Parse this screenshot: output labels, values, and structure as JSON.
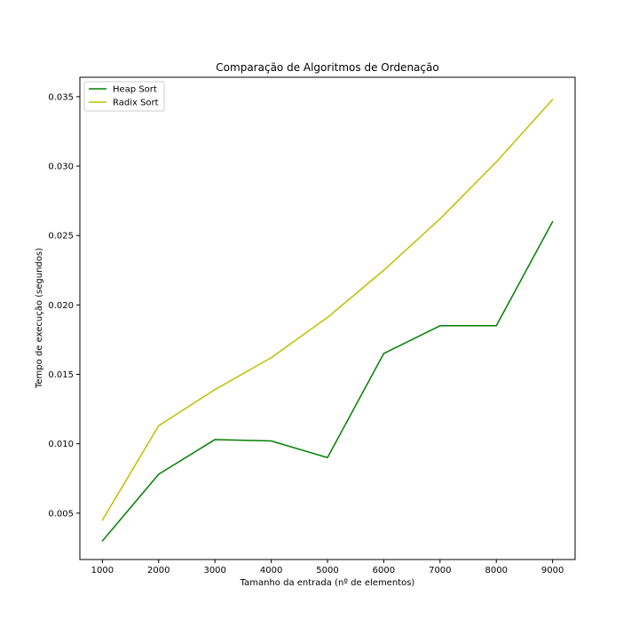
{
  "chart_data": {
    "type": "line",
    "title": "Comparação de Algoritmos de Ordenação",
    "xlabel": "Tamanho da entrada (nº de elementos)",
    "ylabel": "Tempo de execução (segundos)",
    "x": [
      1000,
      2000,
      3000,
      4000,
      5000,
      6000,
      7000,
      8000,
      9000
    ],
    "xlim": [
      600,
      9400
    ],
    "ylim": [
      0.00166,
      0.0364
    ],
    "xticks": [
      "1000",
      "2000",
      "3000",
      "4000",
      "5000",
      "6000",
      "7000",
      "8000",
      "9000"
    ],
    "yticks": [
      "0.005",
      "0.010",
      "0.015",
      "0.020",
      "0.025",
      "0.030",
      "0.035"
    ],
    "grid": false,
    "legend_position": "top-left",
    "series": [
      {
        "name": "Heap Sort",
        "color": "#008000",
        "values": [
          0.003,
          0.0078,
          0.0103,
          0.0102,
          0.009,
          0.0165,
          0.0185,
          0.0185,
          0.026
        ]
      },
      {
        "name": "Radix Sort",
        "color": "#bfbf00",
        "values": [
          0.0045,
          0.0113,
          0.0139,
          0.0162,
          0.0191,
          0.0225,
          0.0262,
          0.0303,
          0.0348
        ]
      }
    ]
  }
}
